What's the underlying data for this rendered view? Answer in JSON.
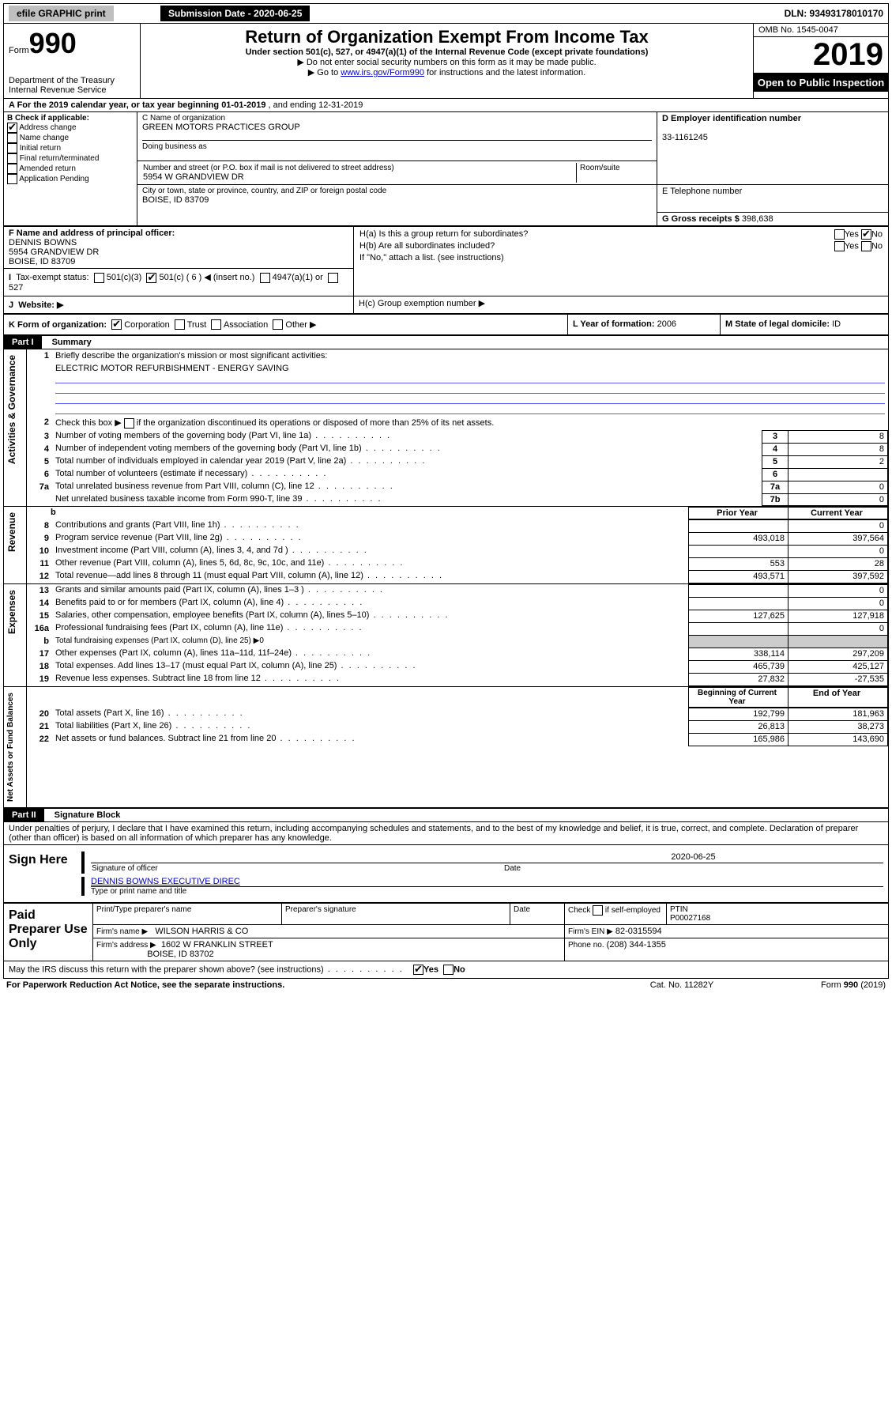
{
  "topbar": {
    "efile": "efile GRAPHIC print",
    "submission_label": "Submission Date - 2020-06-25",
    "dln_label": "DLN: 93493178010170"
  },
  "header": {
    "form_prefix": "Form",
    "form_num": "990",
    "dept": "Department of the Treasury",
    "irs": "Internal Revenue Service",
    "title": "Return of Organization Exempt From Income Tax",
    "subtitle1": "Under section 501(c), 527, or 4947(a)(1) of the Internal Revenue Code (except private foundations)",
    "subtitle2": "▶ Do not enter social security numbers on this form as it may be made public.",
    "subtitle3_pre": "▶ Go to ",
    "subtitle3_link": "www.irs.gov/Form990",
    "subtitle3_post": " for instructions and the latest information.",
    "omb": "OMB No. 1545-0047",
    "year": "2019",
    "open_public": "Open to Public Inspection"
  },
  "period": {
    "line": "A For the 2019 calendar year, or tax year beginning 01-01-2019 ",
    "ending": ", and ending 12-31-2019"
  },
  "boxB": {
    "label": "B Check if applicable:",
    "addr_change": "Address change",
    "name_change": "Name change",
    "initial": "Initial return",
    "final": "Final return/terminated",
    "amended": "Amended return",
    "app_pending": "Application Pending"
  },
  "boxC": {
    "name_label": "C Name of organization",
    "name": "GREEN MOTORS PRACTICES GROUP",
    "dba_label": "Doing business as",
    "addr_label": "Number and street (or P.O. box if mail is not delivered to street address)",
    "room_label": "Room/suite",
    "addr": "5954 W GRANDVIEW DR",
    "city_label": "City or town, state or province, country, and ZIP or foreign postal code",
    "city": "BOISE, ID  83709"
  },
  "boxD": {
    "label": "D Employer identification number",
    "value": "33-1161245"
  },
  "boxE": {
    "label": "E Telephone number",
    "value": ""
  },
  "boxG": {
    "label": "G Gross receipts $",
    "value": "398,638"
  },
  "boxF": {
    "label": "F  Name and address of principal officer:",
    "l1": "DENNIS BOWNS",
    "l2": "5954 GRANDVIEW DR",
    "l3": "BOISE, ID  83709"
  },
  "boxH": {
    "a": "H(a)  Is this a group return for subordinates?",
    "b": "H(b)  Are all subordinates included?",
    "note": "If \"No,\" attach a list. (see instructions)",
    "c": "H(c)  Group exemption number ▶",
    "yes": "Yes",
    "no": "No"
  },
  "boxI": {
    "label": "Tax-exempt status:",
    "c3": "501(c)(3)",
    "c_blank": "501(c) ( 6 ) ◀ (insert no.)",
    "a4947": "4947(a)(1) or",
    "s527": "527"
  },
  "boxJ": {
    "label": "Website: ▶"
  },
  "boxK": {
    "label": "K Form of organization:",
    "corp": "Corporation",
    "trust": "Trust",
    "assoc": "Association",
    "other": "Other ▶"
  },
  "boxL": {
    "label": "L Year of formation:",
    "value": "2006"
  },
  "boxM": {
    "label": "M State of legal domicile:",
    "value": "ID"
  },
  "part1": {
    "header": "Part I",
    "title": "Summary",
    "q1": "Briefly describe the organization's mission or most significant activities:",
    "q1_ans": "ELECTRIC MOTOR REFURBISHMENT - ENERGY SAVING",
    "q2": "Check this box ▶",
    "q2_post": "if the organization discontinued its operations or disposed of more than 25% of its net assets.",
    "rows": [
      {
        "n": "3",
        "t": "Number of voting members of the governing body (Part VI, line 1a)",
        "box": "3",
        "v": "8"
      },
      {
        "n": "4",
        "t": "Number of independent voting members of the governing body (Part VI, line 1b)",
        "box": "4",
        "v": "8"
      },
      {
        "n": "5",
        "t": "Total number of individuals employed in calendar year 2019 (Part V, line 2a)",
        "box": "5",
        "v": "2"
      },
      {
        "n": "6",
        "t": "Total number of volunteers (estimate if necessary)",
        "box": "6",
        "v": ""
      },
      {
        "n": "7a",
        "t": "Total unrelated business revenue from Part VIII, column (C), line 12",
        "box": "7a",
        "v": "0"
      },
      {
        "n": "",
        "t": "Net unrelated business taxable income from Form 990-T, line 39",
        "box": "7b",
        "v": "0"
      }
    ],
    "col_prior": "Prior Year",
    "col_current": "Current Year",
    "rev": [
      {
        "n": "8",
        "t": "Contributions and grants (Part VIII, line 1h)",
        "p": "",
        "c": "0"
      },
      {
        "n": "9",
        "t": "Program service revenue (Part VIII, line 2g)",
        "p": "493,018",
        "c": "397,564"
      },
      {
        "n": "10",
        "t": "Investment income (Part VIII, column (A), lines 3, 4, and 7d )",
        "p": "",
        "c": "0"
      },
      {
        "n": "11",
        "t": "Other revenue (Part VIII, column (A), lines 5, 6d, 8c, 9c, 10c, and 11e)",
        "p": "553",
        "c": "28"
      },
      {
        "n": "12",
        "t": "Total revenue—add lines 8 through 11 (must equal Part VIII, column (A), line 12)",
        "p": "493,571",
        "c": "397,592"
      }
    ],
    "exp": [
      {
        "n": "13",
        "t": "Grants and similar amounts paid (Part IX, column (A), lines 1–3 )",
        "p": "",
        "c": "0"
      },
      {
        "n": "14",
        "t": "Benefits paid to or for members (Part IX, column (A), line 4)",
        "p": "",
        "c": "0"
      },
      {
        "n": "15",
        "t": "Salaries, other compensation, employee benefits (Part IX, column (A), lines 5–10)",
        "p": "127,625",
        "c": "127,918"
      },
      {
        "n": "16a",
        "t": "Professional fundraising fees (Part IX, column (A), line 11e)",
        "p": "",
        "c": "0"
      },
      {
        "n": "b",
        "t": "Total fundraising expenses (Part IX, column (D), line 25) ▶0",
        "p": "",
        "c": "",
        "nobox": true
      },
      {
        "n": "17",
        "t": "Other expenses (Part IX, column (A), lines 11a–11d, 11f–24e)",
        "p": "338,114",
        "c": "297,209"
      },
      {
        "n": "18",
        "t": "Total expenses. Add lines 13–17 (must equal Part IX, column (A), line 25)",
        "p": "465,739",
        "c": "425,127"
      },
      {
        "n": "19",
        "t": "Revenue less expenses. Subtract line 18 from line 12",
        "p": "27,832",
        "c": "-27,535"
      }
    ],
    "col_begin": "Beginning of Current Year",
    "col_end": "End of Year",
    "net": [
      {
        "n": "20",
        "t": "Total assets (Part X, line 16)",
        "p": "192,799",
        "c": "181,963"
      },
      {
        "n": "21",
        "t": "Total liabilities (Part X, line 26)",
        "p": "26,813",
        "c": "38,273"
      },
      {
        "n": "22",
        "t": "Net assets or fund balances. Subtract line 21 from line 20",
        "p": "165,986",
        "c": "143,690"
      }
    ],
    "side_gov": "Activities & Governance",
    "side_rev": "Revenue",
    "side_exp": "Expenses",
    "side_net": "Net Assets or Fund Balances"
  },
  "part2": {
    "header": "Part II",
    "title": "Signature Block",
    "perjury": "Under penalties of perjury, I declare that I have examined this return, including accompanying schedules and statements, and to the best of my knowledge and belief, it is true, correct, and complete. Declaration of preparer (other than officer) is based on all information of which preparer has any knowledge.",
    "sign_here": "Sign Here",
    "sig_officer": "Signature of officer",
    "sig_date": "2020-06-25",
    "date_label": "Date",
    "name_title": "DENNIS BOWNS EXECUTIVE DIREC",
    "name_title_label": "Type or print name and title",
    "paid": "Paid Preparer Use Only",
    "prep_name_label": "Print/Type preparer's name",
    "prep_sig_label": "Preparer's signature",
    "prep_date_label": "Date",
    "check_self": "Check",
    "self_emp": "if self-employed",
    "ptin_label": "PTIN",
    "ptin": "P00027168",
    "firm_name_label": "Firm's name      ▶",
    "firm_name": "WILSON HARRIS & CO",
    "firm_ein_label": "Firm's EIN ▶",
    "firm_ein": "82-0315594",
    "firm_addr_label": "Firm's address ▶",
    "firm_addr1": "1602 W FRANKLIN STREET",
    "firm_addr2": "BOISE, ID  83702",
    "phone_label": "Phone no.",
    "phone": "(208) 344-1355",
    "discuss": "May the IRS discuss this return with the preparer shown above? (see instructions)"
  },
  "footer": {
    "pra": "For Paperwork Reduction Act Notice, see the separate instructions.",
    "cat": "Cat. No. 11282Y",
    "form": "Form 990 (2019)"
  }
}
